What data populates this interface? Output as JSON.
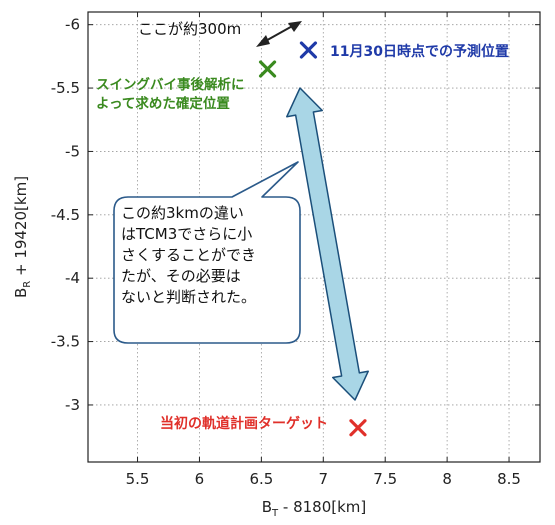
{
  "chart_data": {
    "type": "scatter",
    "xlabel": "B_T - 8180[km]",
    "xlabel_main": "B",
    "xlabel_sub": "T",
    "xlabel_rest": " - 8180[km]",
    "ylabel_main": "B",
    "ylabel_sub": "R",
    "ylabel_rest": " + 19420[km]",
    "xlim": [
      5.1,
      8.75
    ],
    "ylim": [
      -2.55,
      -6.1
    ],
    "y_axis_inverted": true,
    "grid": true,
    "x_ticks": [
      5.5,
      6,
      6.5,
      7,
      7.5,
      8,
      8.5
    ],
    "x_tick_labels": [
      "5.5",
      "6",
      "6.5",
      "7",
      "7.5",
      "8",
      "8.5"
    ],
    "y_ticks": [
      -6,
      -5.5,
      -5,
      -4.5,
      -4,
      -3.5,
      -3
    ],
    "y_tick_labels": [
      "-6",
      "-5.5",
      "-5",
      "-4.5",
      "-4",
      "-3.5",
      "-3"
    ],
    "points": [
      {
        "x": 6.88,
        "y": -5.8,
        "label": "11月30日時点での予測位置",
        "color": "#1f3aa8"
      },
      {
        "x": 6.55,
        "y": -5.65,
        "label": "スイングバイ事後解析によって求めた確定位置",
        "color": "#3a8a1f"
      },
      {
        "x": 7.28,
        "y": -2.82,
        "label": "当初の軌道計画ターゲット",
        "color": "#e0302a"
      }
    ],
    "annotations": {
      "distance_short": "ここが約300m",
      "bubble_lines": [
        "この約3kmの違い",
        "はTCM3でさらに小",
        "さくすることができ",
        "たが、その必要は",
        "ないと判断された。"
      ]
    }
  },
  "labels": {
    "predicted": "11月30日時点での予測位置",
    "confirmed_line1": "スイングバイ事後解析に",
    "confirmed_line2": "よって求めた確定位置",
    "target": "当初の軌道計画ターゲット"
  },
  "colors": {
    "predicted": "#1f3aa8",
    "confirmed": "#3a8a1f",
    "target": "#e0302a",
    "big_arrow_fill": "#a9d6e6",
    "big_arrow_stroke": "#1b4f7a",
    "bubble_stroke": "#2b5a8a"
  }
}
